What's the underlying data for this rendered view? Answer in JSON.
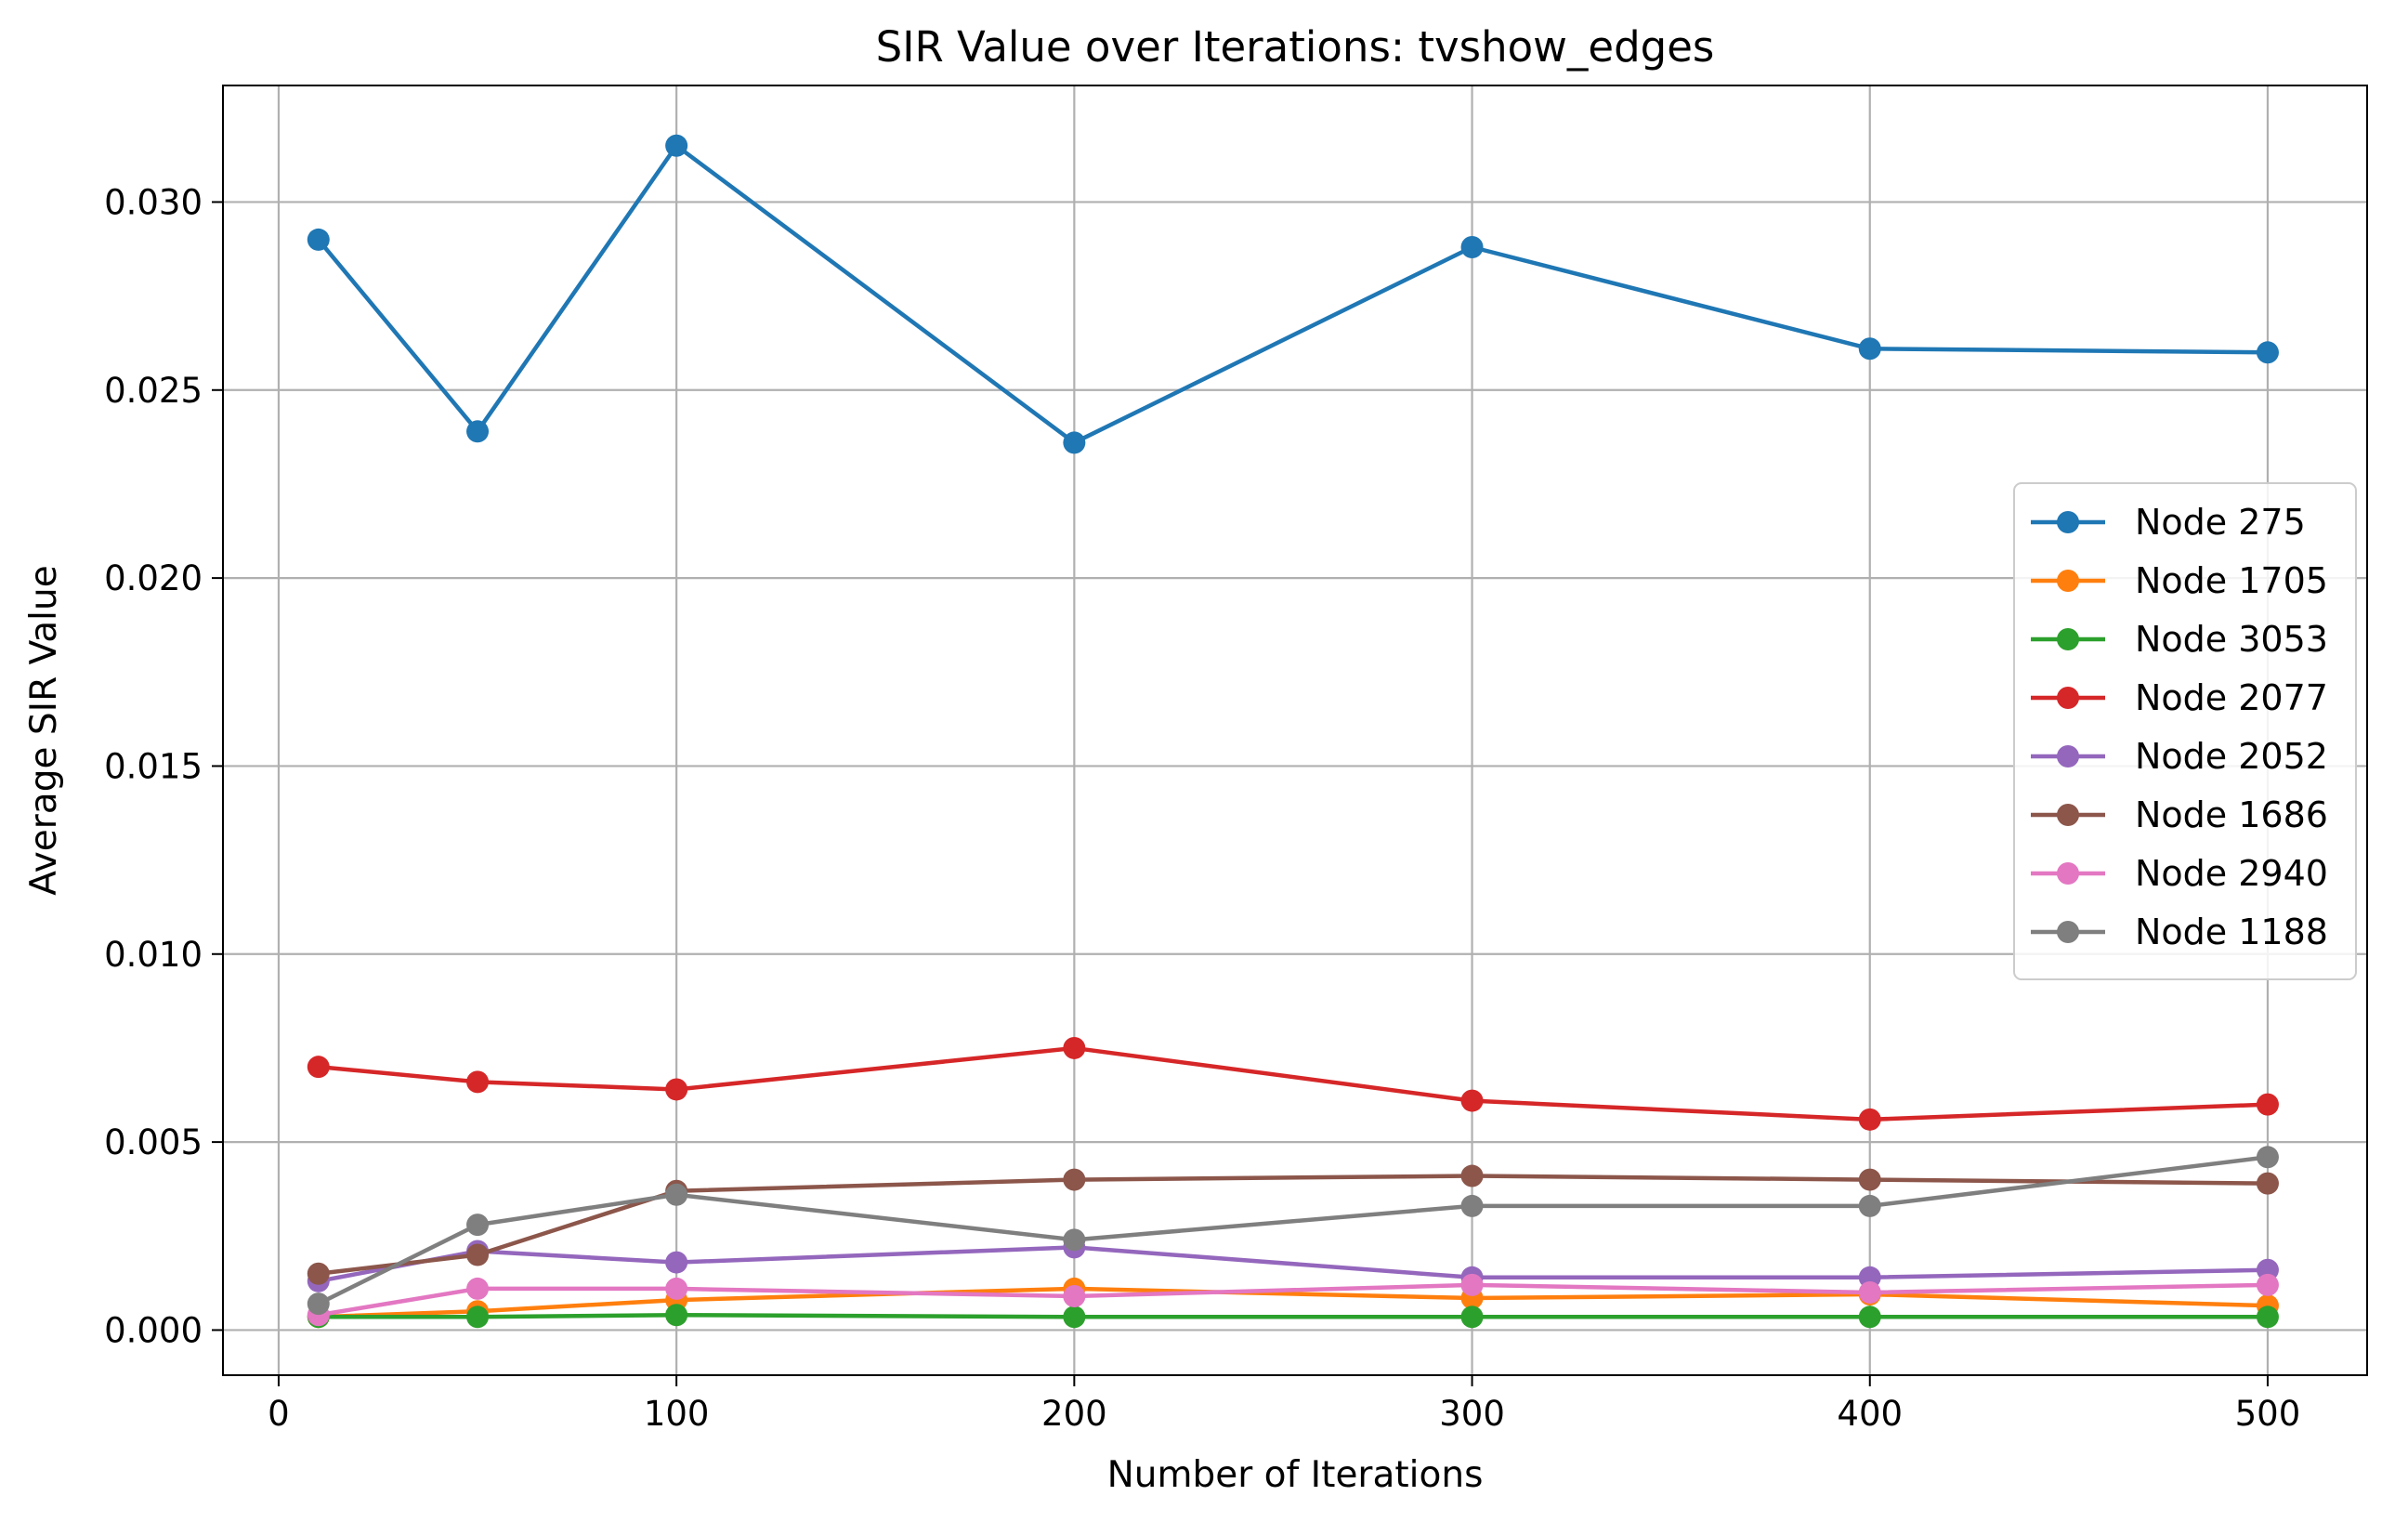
{
  "chart_data": {
    "type": "line",
    "title": "SIR Value over Iterations: tvshow_edges",
    "xlabel": "Number of Iterations",
    "ylabel": "Average SIR Value",
    "xlim": [
      -14,
      525
    ],
    "ylim": [
      -0.0012,
      0.0331
    ],
    "xticks": [
      0,
      100,
      200,
      300,
      400,
      500
    ],
    "xtick_labels": [
      "0",
      "100",
      "200",
      "300",
      "400",
      "500"
    ],
    "yticks": [
      0,
      0.005,
      0.01,
      0.015,
      0.02,
      0.025,
      0.03
    ],
    "ytick_labels": [
      "0.000",
      "0.005",
      "0.010",
      "0.015",
      "0.020",
      "0.025",
      "0.030"
    ],
    "grid": true,
    "legend_position": "center-right",
    "x": [
      10,
      50,
      100,
      200,
      300,
      400,
      500
    ],
    "series": [
      {
        "name": "Node 275",
        "color": "#1f77b4",
        "values": [
          0.029,
          0.0239,
          0.0315,
          0.0236,
          0.0288,
          0.0261,
          0.026
        ]
      },
      {
        "name": "Node 1705",
        "color": "#ff7f0e",
        "values": [
          0.00035,
          0.0005,
          0.0008,
          0.0011,
          0.00085,
          0.00095,
          0.00065
        ]
      },
      {
        "name": "Node 3053",
        "color": "#2ca02c",
        "values": [
          0.00035,
          0.00035,
          0.0004,
          0.00035,
          0.00035,
          0.00035,
          0.00035
        ]
      },
      {
        "name": "Node 2077",
        "color": "#d62728",
        "values": [
          0.007,
          0.0066,
          0.0064,
          0.0075,
          0.0061,
          0.0056,
          0.006
        ]
      },
      {
        "name": "Node 2052",
        "color": "#9467bd",
        "values": [
          0.0013,
          0.0021,
          0.0018,
          0.0022,
          0.0014,
          0.0014,
          0.0016
        ]
      },
      {
        "name": "Node 1686",
        "color": "#8c564b",
        "values": [
          0.0015,
          0.002,
          0.0037,
          0.004,
          0.0041,
          0.004,
          0.0039
        ]
      },
      {
        "name": "Node 2940",
        "color": "#e377c2",
        "values": [
          0.0004,
          0.0011,
          0.0011,
          0.0009,
          0.0012,
          0.001,
          0.0012
        ]
      },
      {
        "name": "Node 1188",
        "color": "#7f7f7f",
        "values": [
          0.0007,
          0.0028,
          0.0036,
          0.0024,
          0.0033,
          0.0033,
          0.0046
        ]
      }
    ]
  }
}
